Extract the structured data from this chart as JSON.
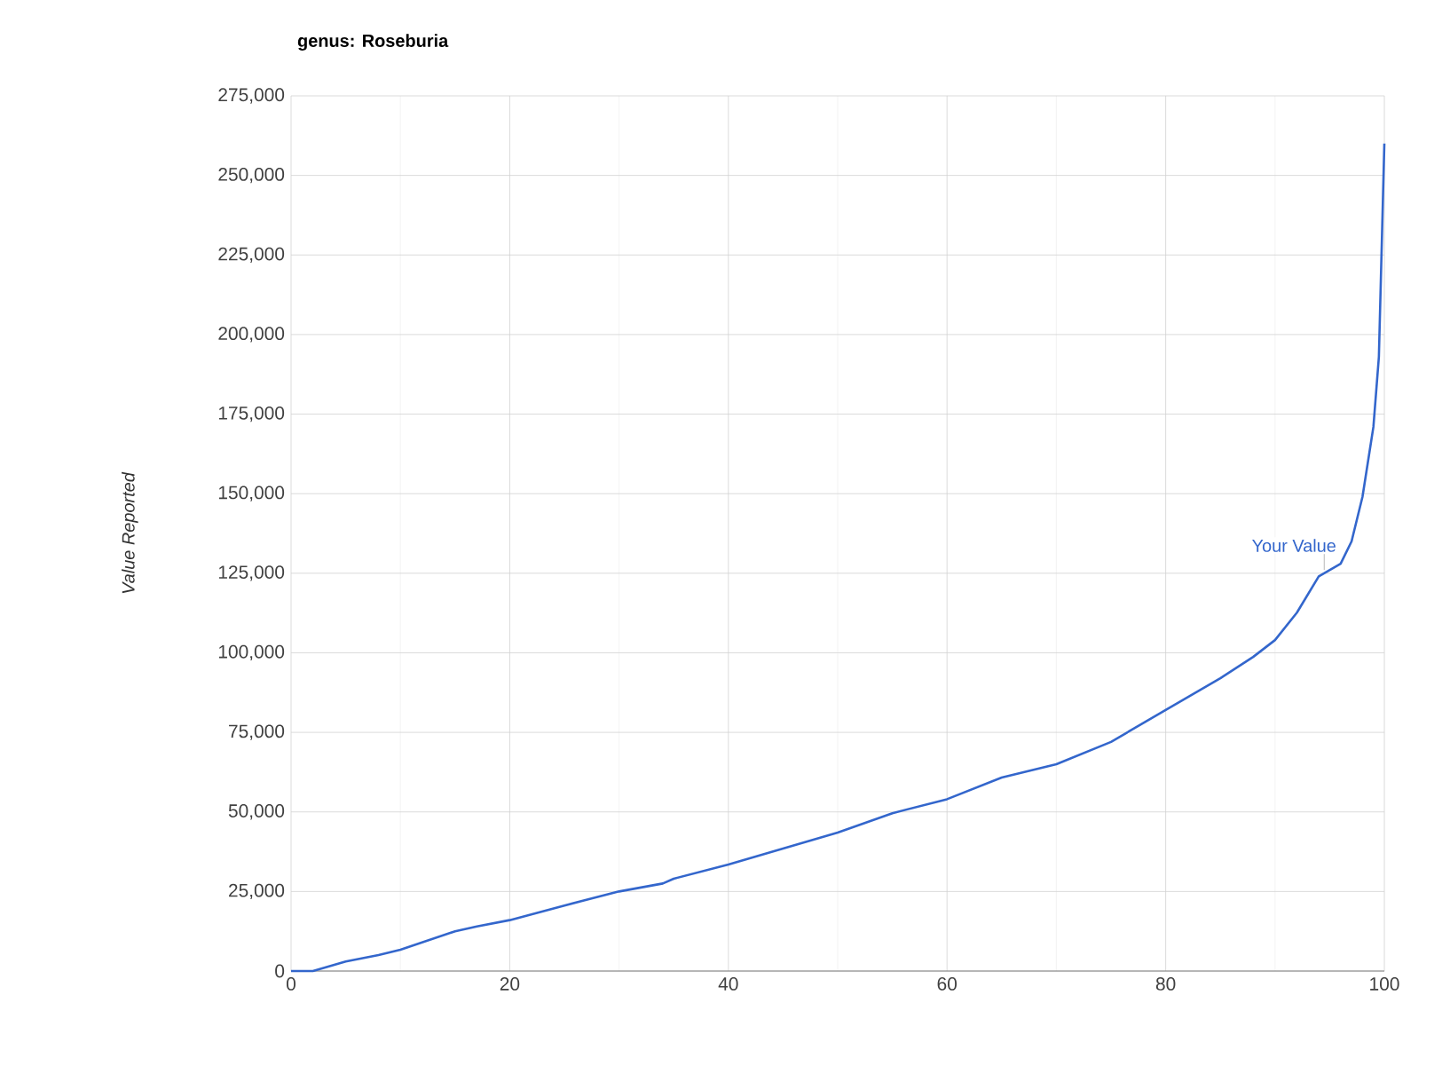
{
  "chart_data": {
    "type": "line",
    "title": "genus: Roseburia",
    "ylabel": "Value Reported",
    "x": [
      0,
      2,
      3,
      5,
      8,
      10,
      15,
      17,
      20,
      25,
      30,
      34,
      35,
      40,
      45,
      50,
      55,
      60,
      65,
      70,
      75,
      80,
      85,
      88,
      90,
      92,
      94,
      95,
      96,
      97,
      98,
      99,
      99.5,
      100
    ],
    "series": [
      {
        "color": "#3366cc",
        "values": [
          0,
          0,
          1000,
          3000,
          5000,
          6700,
          12500,
          14000,
          16000,
          20600,
          25000,
          27500,
          29000,
          33500,
          38500,
          43500,
          49600,
          54000,
          60800,
          65000,
          72000,
          82000,
          92000,
          98700,
          104000,
          112600,
          124000,
          126000,
          128000,
          135000,
          149000,
          171000,
          193000,
          260000
        ]
      }
    ],
    "xlim": [
      0,
      100
    ],
    "xticks": [
      0,
      20,
      40,
      60,
      80,
      100
    ],
    "ylim": [
      0,
      275000
    ],
    "yticks": [
      {
        "value": 0,
        "label": "0"
      },
      {
        "value": 25000,
        "label": "25,000"
      },
      {
        "value": 50000,
        "label": "50,000"
      },
      {
        "value": 75000,
        "label": "75,000"
      },
      {
        "value": 100000,
        "label": "100,000"
      },
      {
        "value": 125000,
        "label": "125,000"
      },
      {
        "value": 150000,
        "label": "150,000"
      },
      {
        "value": 175000,
        "label": "175,000"
      },
      {
        "value": 200000,
        "label": "200,000"
      },
      {
        "value": 225000,
        "label": "225,000"
      },
      {
        "value": 250000,
        "label": "250,000"
      },
      {
        "value": 275000,
        "label": "275,000"
      }
    ],
    "grid": true,
    "marker": "none",
    "line_style": "solid",
    "annotations": [
      {
        "text": "Your Value",
        "x": 94.5,
        "y": 126000
      }
    ]
  }
}
